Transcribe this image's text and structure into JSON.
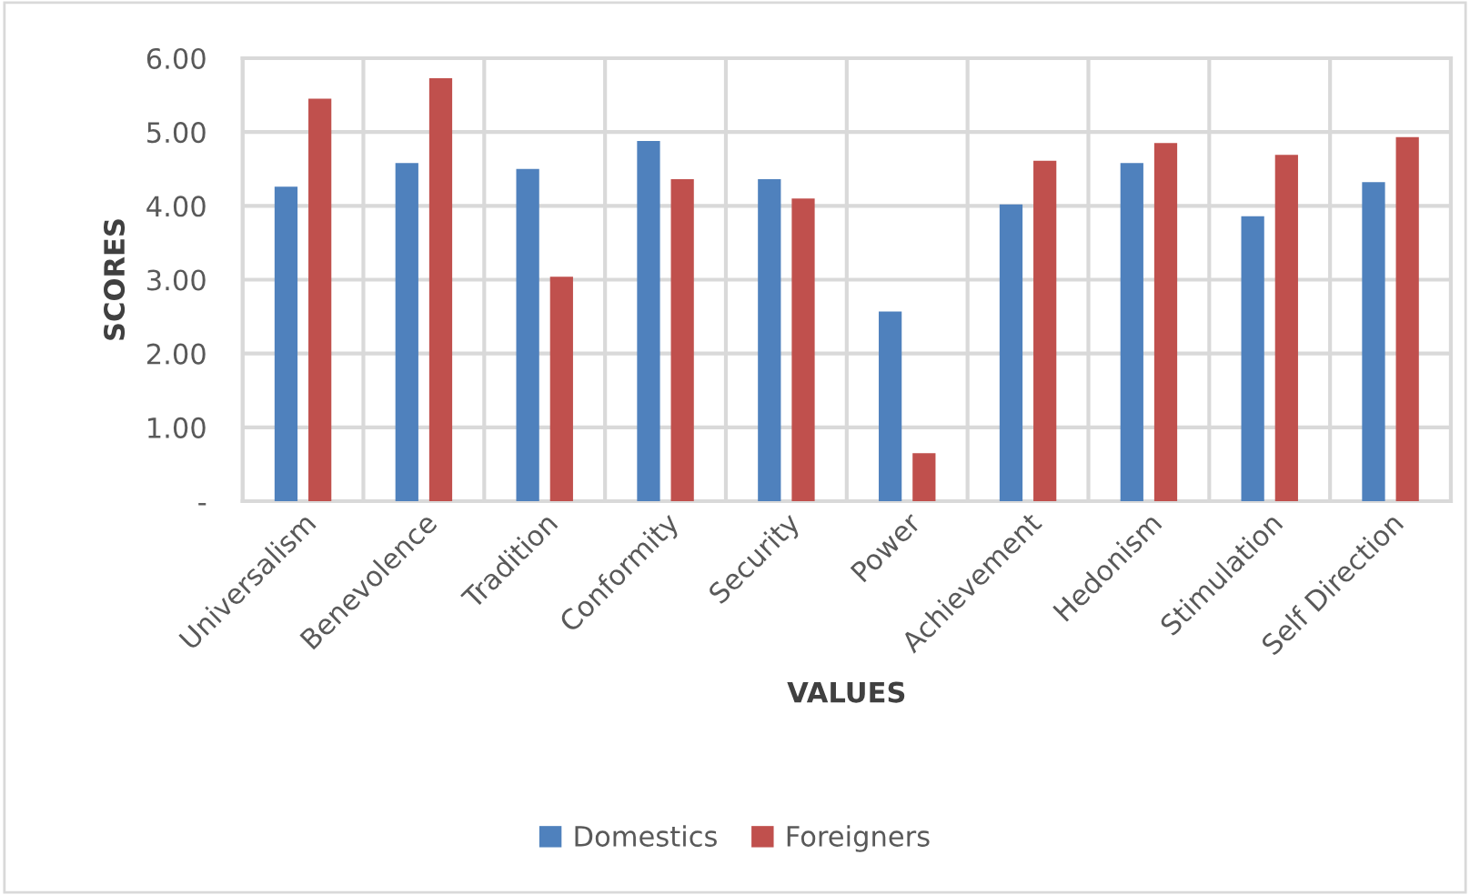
{
  "chart_data": {
    "type": "bar",
    "xlabel": "VALUES",
    "ylabel": "SCORES",
    "categories": [
      "Universalism",
      "Benevolence",
      "Tradition",
      "Conformity",
      "Security",
      "Power",
      "Achievement",
      "Hedonism",
      "Stimulation",
      "Self Direction"
    ],
    "series": [
      {
        "name": "Domestics",
        "color": "#4f81bd",
        "values": [
          4.26,
          4.58,
          4.5,
          4.88,
          4.36,
          2.57,
          4.02,
          4.58,
          3.86,
          4.32
        ]
      },
      {
        "name": "Foreigners",
        "color": "#c0504d",
        "values": [
          5.45,
          5.73,
          3.04,
          4.36,
          4.1,
          0.65,
          4.61,
          4.85,
          4.69,
          4.93
        ]
      }
    ],
    "ylim": [
      0,
      6
    ],
    "yticks": [
      {
        "value": 0,
        "label": "-"
      },
      {
        "value": 1,
        "label": "1.00"
      },
      {
        "value": 2,
        "label": "2.00"
      },
      {
        "value": 3,
        "label": "3.00"
      },
      {
        "value": 4,
        "label": "4.00"
      },
      {
        "value": 5,
        "label": "5.00"
      },
      {
        "value": 6,
        "label": "6.00"
      }
    ],
    "grid": true,
    "legend": "bottom"
  }
}
